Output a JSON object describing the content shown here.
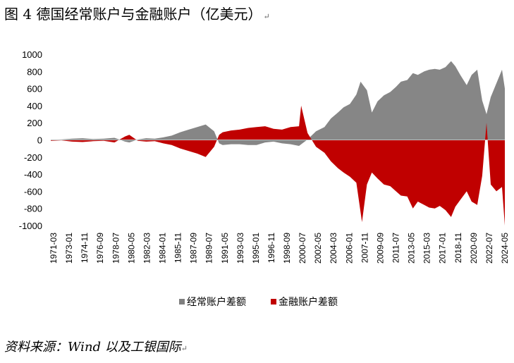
{
  "title": "图 4  德国经常账户与金融账户（亿美元）",
  "title_mark": "↵",
  "source": "资料来源：Wind 以及工银国际",
  "source_mark": "↵",
  "colors": {
    "current": "#7f7f7f",
    "financial": "#c00000"
  },
  "chart_data": {
    "type": "area",
    "title": "",
    "xlabel": "",
    "ylabel": "",
    "ylim": [
      -1000,
      1000
    ],
    "yticks": [
      -1000,
      -800,
      -600,
      -400,
      -200,
      0,
      200,
      400,
      600,
      800,
      1000
    ],
    "grid": false,
    "legend_position": "bottom",
    "x_tick_labels": [
      "1971-03",
      "1973-01",
      "1974-11",
      "1976-09",
      "1978-07",
      "1980-05",
      "1982-03",
      "1984-01",
      "1985-11",
      "1987-09",
      "1989-07",
      "1991-05",
      "1993-03",
      "1995-01",
      "1996-11",
      "1998-09",
      "2000-07",
      "2002-05",
      "2004-03",
      "2006-01",
      "2007-11",
      "2009-09",
      "2011-07",
      "2013-05",
      "2015-03",
      "2017-01",
      "2018-11",
      "2020-09",
      "2022-07",
      "2024-05"
    ],
    "series": [
      {
        "name": "经常账户差额",
        "color": "#7f7f7f",
        "points": [
          [
            "1971-03",
            2
          ],
          [
            "1972-06",
            5
          ],
          [
            "1973-09",
            15
          ],
          [
            "1974-12",
            20
          ],
          [
            "1976-03",
            10
          ],
          [
            "1977-06",
            15
          ],
          [
            "1978-09",
            25
          ],
          [
            "1979-12",
            -20
          ],
          [
            "1980-06",
            -30
          ],
          [
            "1981-06",
            5
          ],
          [
            "1982-06",
            20
          ],
          [
            "1983-06",
            15
          ],
          [
            "1984-06",
            30
          ],
          [
            "1985-06",
            50
          ],
          [
            "1986-06",
            90
          ],
          [
            "1987-06",
            120
          ],
          [
            "1988-06",
            150
          ],
          [
            "1989-06",
            180
          ],
          [
            "1990-06",
            100
          ],
          [
            "1991-01",
            -40
          ],
          [
            "1991-06",
            -60
          ],
          [
            "1992-06",
            -50
          ],
          [
            "1993-06",
            -50
          ],
          [
            "1994-06",
            -60
          ],
          [
            "1995-06",
            -60
          ],
          [
            "1996-06",
            -30
          ],
          [
            "1997-06",
            -20
          ],
          [
            "1998-06",
            -40
          ],
          [
            "1999-06",
            -50
          ],
          [
            "2000-06",
            -70
          ],
          [
            "2001-06",
            5
          ],
          [
            "2002-06",
            100
          ],
          [
            "2003-06",
            150
          ],
          [
            "2004-03",
            250
          ],
          [
            "2005-01",
            320
          ],
          [
            "2005-09",
            380
          ],
          [
            "2006-06",
            420
          ],
          [
            "2007-03",
            530
          ],
          [
            "2007-09",
            680
          ],
          [
            "2008-06",
            580
          ],
          [
            "2009-01",
            320
          ],
          [
            "2009-09",
            450
          ],
          [
            "2010-06",
            520
          ],
          [
            "2011-03",
            560
          ],
          [
            "2011-11",
            620
          ],
          [
            "2012-06",
            680
          ],
          [
            "2013-03",
            700
          ],
          [
            "2013-11",
            780
          ],
          [
            "2014-06",
            760
          ],
          [
            "2015-03",
            800
          ],
          [
            "2015-10",
            820
          ],
          [
            "2016-06",
            830
          ],
          [
            "2017-01",
            820
          ],
          [
            "2017-09",
            850
          ],
          [
            "2018-05",
            920
          ],
          [
            "2018-11",
            860
          ],
          [
            "2019-06",
            760
          ],
          [
            "2020-03",
            640
          ],
          [
            "2020-10",
            760
          ],
          [
            "2021-06",
            820
          ],
          [
            "2022-01",
            460
          ],
          [
            "2022-07",
            300
          ],
          [
            "2023-01",
            500
          ],
          [
            "2023-09",
            660
          ],
          [
            "2024-05",
            820
          ],
          [
            "2024-09",
            600
          ]
        ]
      },
      {
        "name": "金融账户差额",
        "color": "#c00000",
        "points": [
          [
            "1971-03",
            -10
          ],
          [
            "1972-06",
            -5
          ],
          [
            "1973-09",
            -20
          ],
          [
            "1974-12",
            -25
          ],
          [
            "1976-03",
            -15
          ],
          [
            "1977-06",
            -10
          ],
          [
            "1978-09",
            -30
          ],
          [
            "1979-12",
            40
          ],
          [
            "1980-06",
            60
          ],
          [
            "1981-06",
            -10
          ],
          [
            "1982-06",
            -20
          ],
          [
            "1983-06",
            -15
          ],
          [
            "1984-06",
            -40
          ],
          [
            "1985-06",
            -60
          ],
          [
            "1986-06",
            -100
          ],
          [
            "1987-06",
            -130
          ],
          [
            "1988-06",
            -160
          ],
          [
            "1989-06",
            -200
          ],
          [
            "1990-06",
            -80
          ],
          [
            "1991-01",
            60
          ],
          [
            "1991-06",
            90
          ],
          [
            "1992-06",
            110
          ],
          [
            "1993-06",
            120
          ],
          [
            "1994-06",
            140
          ],
          [
            "1995-06",
            150
          ],
          [
            "1996-06",
            160
          ],
          [
            "1997-06",
            130
          ],
          [
            "1998-06",
            120
          ],
          [
            "1999-06",
            150
          ],
          [
            "2000-06",
            160
          ],
          [
            "2000-09",
            400
          ],
          [
            "2001-06",
            80
          ],
          [
            "2002-06",
            -80
          ],
          [
            "2003-06",
            -150
          ],
          [
            "2004-03",
            -250
          ],
          [
            "2005-01",
            -330
          ],
          [
            "2005-09",
            -380
          ],
          [
            "2006-06",
            -430
          ],
          [
            "2007-03",
            -500
          ],
          [
            "2007-11",
            -960
          ],
          [
            "2008-06",
            -520
          ],
          [
            "2009-01",
            -380
          ],
          [
            "2009-09",
            -450
          ],
          [
            "2010-06",
            -520
          ],
          [
            "2011-03",
            -540
          ],
          [
            "2011-11",
            -600
          ],
          [
            "2012-06",
            -650
          ],
          [
            "2013-03",
            -660
          ],
          [
            "2013-11",
            -800
          ],
          [
            "2014-06",
            -720
          ],
          [
            "2015-03",
            -760
          ],
          [
            "2015-10",
            -790
          ],
          [
            "2016-06",
            -800
          ],
          [
            "2017-01",
            -770
          ],
          [
            "2017-09",
            -820
          ],
          [
            "2018-05",
            -900
          ],
          [
            "2018-11",
            -780
          ],
          [
            "2019-06",
            -700
          ],
          [
            "2020-03",
            -600
          ],
          [
            "2020-10",
            -720
          ],
          [
            "2021-06",
            -760
          ],
          [
            "2022-01",
            -420
          ],
          [
            "2022-07",
            200
          ],
          [
            "2023-01",
            -520
          ],
          [
            "2023-09",
            -600
          ],
          [
            "2024-05",
            -550
          ],
          [
            "2024-09",
            -1000
          ]
        ]
      }
    ]
  }
}
